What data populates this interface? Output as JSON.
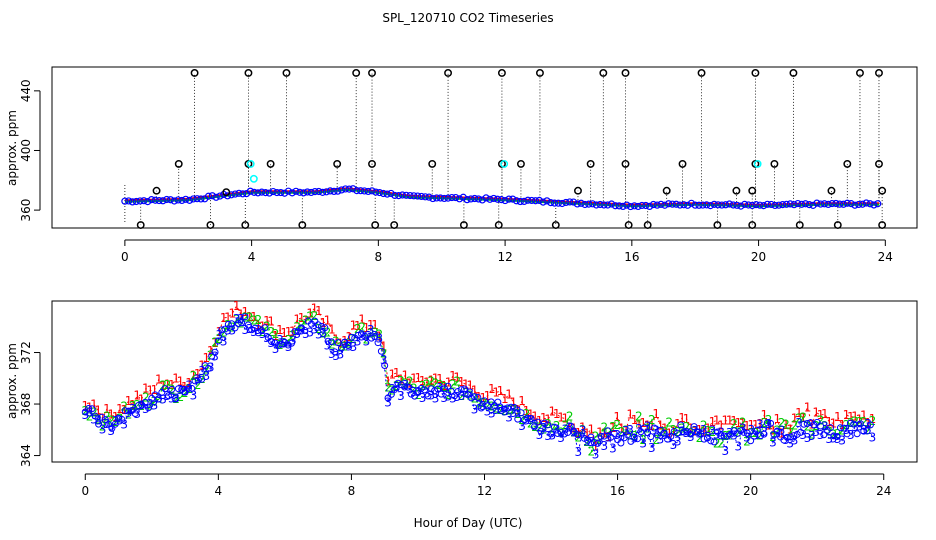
{
  "colors": {
    "series1": "#ff0000",
    "series2": "#00cc00",
    "series3": "#0000ff",
    "cyan": "#00ffff",
    "black": "#000000"
  },
  "chart_data": [
    {
      "type": "scatter",
      "panel": "top",
      "title": "SPL_120710  CO2 Timeseries",
      "xlabel": "",
      "ylabel": "approx. ppm",
      "xlim": [
        -2.3,
        25.0
      ],
      "ylim": [
        348,
        456
      ],
      "xticks": [
        0,
        4,
        8,
        12,
        16,
        20,
        24
      ],
      "yticks": [
        360,
        400,
        440
      ],
      "baseline": [
        [
          0.0,
          366
        ],
        [
          2.0,
          367
        ],
        [
          4.0,
          372
        ],
        [
          6.0,
          372
        ],
        [
          7.0,
          374
        ],
        [
          8.0,
          372
        ],
        [
          9.0,
          369
        ],
        [
          12.0,
          367
        ],
        [
          14.0,
          365
        ],
        [
          16.0,
          363
        ],
        [
          18.0,
          364
        ],
        [
          20.0,
          363
        ],
        [
          22.0,
          364
        ],
        [
          24.0,
          364
        ]
      ],
      "high_outliers_x": [
        2.2,
        3.9,
        5.1,
        7.3,
        7.8,
        10.2,
        11.9,
        13.1,
        15.1,
        15.8,
        18.2,
        19.9,
        21.1,
        23.2,
        23.8
      ],
      "high_outlier_value": 452,
      "mid_outliers": [
        [
          1.0,
          373
        ],
        [
          1.7,
          391
        ],
        [
          3.2,
          372
        ],
        [
          3.9,
          391
        ],
        [
          4.6,
          391
        ],
        [
          6.7,
          391
        ],
        [
          7.8,
          391
        ],
        [
          9.7,
          391
        ],
        [
          11.9,
          391
        ],
        [
          12.5,
          391
        ],
        [
          14.3,
          373
        ],
        [
          14.7,
          391
        ],
        [
          15.8,
          391
        ],
        [
          17.1,
          373
        ],
        [
          17.6,
          391
        ],
        [
          19.3,
          373
        ],
        [
          19.8,
          373
        ],
        [
          19.9,
          391
        ],
        [
          20.5,
          391
        ],
        [
          22.3,
          373
        ],
        [
          22.8,
          391
        ],
        [
          23.8,
          391
        ],
        [
          23.9,
          373
        ]
      ],
      "low_outliers_x": [
        0.5,
        2.7,
        3.8,
        5.6,
        7.9,
        8.5,
        10.7,
        11.8,
        13.6,
        15.9,
        16.5,
        18.7,
        19.8,
        21.3,
        22.5,
        23.9
      ],
      "low_outlier_value": 350
    },
    {
      "type": "scatter",
      "panel": "bottom",
      "title": "",
      "xlabel": "Hour of Day (UTC)",
      "ylabel": "approx. ppm",
      "xlim": [
        -1.0,
        25.0
      ],
      "ylim": [
        363.5,
        376.0
      ],
      "xticks": [
        0,
        4,
        8,
        12,
        16,
        20,
        24
      ],
      "yticks": [
        364,
        368,
        372
      ],
      "series": [
        {
          "name": "1",
          "offset": 0.8
        },
        {
          "name": "2",
          "offset": 0.2
        },
        {
          "name": "3",
          "offset": -0.25
        }
      ],
      "curve": [
        [
          0.0,
          367.4
        ],
        [
          0.3,
          367.1
        ],
        [
          0.7,
          366.2
        ],
        [
          1.0,
          366.9
        ],
        [
          1.5,
          367.5
        ],
        [
          2.0,
          368.2
        ],
        [
          2.3,
          369.0
        ],
        [
          2.7,
          368.7
        ],
        [
          3.0,
          369.0
        ],
        [
          3.3,
          369.5
        ],
        [
          3.7,
          371.0
        ],
        [
          4.0,
          373.2
        ],
        [
          4.3,
          374.0
        ],
        [
          4.7,
          374.6
        ],
        [
          5.0,
          374.2
        ],
        [
          5.4,
          373.5
        ],
        [
          5.8,
          372.9
        ],
        [
          6.2,
          373.0
        ],
        [
          6.5,
          373.9
        ],
        [
          6.9,
          374.2
        ],
        [
          7.2,
          373.5
        ],
        [
          7.5,
          372.3
        ],
        [
          7.8,
          372.4
        ],
        [
          8.0,
          373.0
        ],
        [
          8.4,
          373.3
        ],
        [
          8.7,
          373.6
        ],
        [
          8.9,
          372.5
        ],
        [
          9.1,
          368.8
        ],
        [
          9.3,
          369.4
        ],
        [
          9.7,
          369.3
        ],
        [
          10.0,
          368.7
        ],
        [
          10.4,
          369.2
        ],
        [
          10.8,
          369.0
        ],
        [
          11.2,
          369.0
        ],
        [
          11.6,
          368.5
        ],
        [
          12.0,
          368.0
        ],
        [
          12.4,
          367.8
        ],
        [
          12.8,
          367.5
        ],
        [
          13.2,
          366.9
        ],
        [
          13.6,
          366.4
        ],
        [
          14.0,
          366.1
        ],
        [
          14.5,
          366.0
        ],
        [
          15.0,
          365.2
        ],
        [
          15.4,
          364.9
        ],
        [
          15.8,
          365.7
        ],
        [
          16.2,
          365.2
        ],
        [
          16.6,
          365.7
        ],
        [
          17.0,
          365.9
        ],
        [
          17.5,
          365.6
        ],
        [
          18.0,
          366.1
        ],
        [
          18.5,
          365.8
        ],
        [
          19.0,
          365.4
        ],
        [
          19.5,
          366.0
        ],
        [
          20.0,
          365.5
        ],
        [
          20.5,
          366.2
        ],
        [
          21.0,
          365.6
        ],
        [
          21.5,
          366.0
        ],
        [
          22.0,
          366.2
        ],
        [
          22.5,
          365.8
        ],
        [
          23.0,
          366.1
        ],
        [
          23.5,
          366.2
        ],
        [
          23.8,
          366.0
        ]
      ]
    }
  ]
}
